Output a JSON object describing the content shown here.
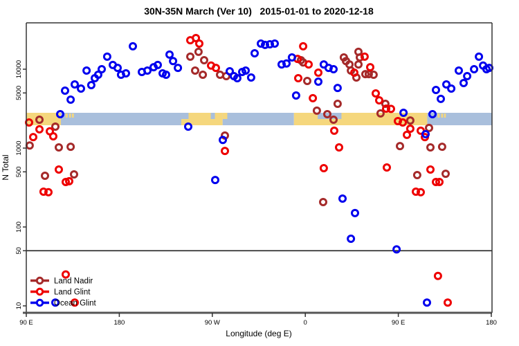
{
  "title": "30N-35N March (Ver 10)   2015-01-01 to 2020-12-18",
  "axes": {
    "x_label": "Longitude (deg E)",
    "y_label": "N Total",
    "x_ticks": [
      {
        "deg": 90,
        "label": "90 E"
      },
      {
        "deg": 180,
        "label": "180"
      },
      {
        "deg": 270,
        "label": "90 W"
      },
      {
        "deg": 360,
        "label": "0"
      },
      {
        "deg": 450,
        "label": "90 E"
      },
      {
        "deg": 540,
        "label": "180"
      }
    ],
    "y_ticks": [
      {
        "value": 10,
        "label": "10"
      },
      {
        "value": 50,
        "label": "50"
      },
      {
        "value": 100,
        "label": "100"
      },
      {
        "value": 500,
        "label": "500"
      },
      {
        "value": 1000,
        "label": "1000"
      },
      {
        "value": 5000,
        "label": "5000"
      },
      {
        "value": 10000,
        "label": "10000"
      }
    ]
  },
  "reference_line_value": 50,
  "colors": {
    "land_nadir": "#A52A2A",
    "land_glint": "#EE0000",
    "ocean_glint": "#0000EE",
    "band_ocean": "#A9BFDC",
    "band_land": "#F5D77D",
    "axis_line": "#333333",
    "bottom_axis": "#555555"
  },
  "map_band": {
    "description": "latitude strip world map 30N-35N: land vs ocean along longitude",
    "segments": [
      {
        "from": 90,
        "to": 123.5,
        "kind": "land",
        "part": "full"
      },
      {
        "from": 123.5,
        "to": 240,
        "kind": "ocean",
        "part": "full"
      },
      {
        "from": 128,
        "to": 130,
        "kind": "land",
        "part": "dot"
      },
      {
        "from": 131.5,
        "to": 133.2,
        "kind": "land",
        "part": "dot"
      },
      {
        "from": 134.2,
        "to": 136,
        "kind": "land",
        "part": "dot"
      },
      {
        "from": 240,
        "to": 280,
        "kind": "land",
        "part": "full"
      },
      {
        "from": 240,
        "to": 247,
        "kind": "ocean",
        "part": "top"
      },
      {
        "from": 268.5,
        "to": 272.5,
        "kind": "ocean",
        "part": "top"
      },
      {
        "from": 280,
        "to": 349,
        "kind": "ocean",
        "part": "full"
      },
      {
        "from": 280,
        "to": 284.5,
        "kind": "land",
        "part": "top"
      },
      {
        "from": 349,
        "to": 478,
        "kind": "land",
        "part": "full"
      },
      {
        "from": 372,
        "to": 395,
        "kind": "ocean",
        "part": "top"
      },
      {
        "from": 478,
        "to": 540.6,
        "kind": "ocean",
        "part": "full"
      },
      {
        "from": 488,
        "to": 490,
        "kind": "land",
        "part": "dot"
      },
      {
        "from": 491.5,
        "to": 493.2,
        "kind": "land",
        "part": "dot"
      },
      {
        "from": 494.2,
        "to": 496,
        "kind": "land",
        "part": "dot"
      }
    ]
  },
  "legend": {
    "items": [
      {
        "label": "Land Nadir",
        "color_key": "land_nadir"
      },
      {
        "label": "Land Glint",
        "color_key": "land_glint"
      },
      {
        "label": "Ocean Glint",
        "color_key": "ocean_glint"
      }
    ]
  },
  "chart_data": {
    "type": "scatter",
    "title": "30N-35N March (Ver 10) 2015-01-01 to 2020-12-18",
    "xlabel": "Longitude (deg E)",
    "ylabel": "N Total",
    "x_axis": {
      "range_deg": [
        90,
        540.6
      ],
      "note": "longitude axis wraps the globe 1.25 times; 90E-180E data drawn twice"
    },
    "y_axis": {
      "scale": "log10",
      "range": [
        9,
        30000
      ]
    },
    "legend_position": "bottom-left",
    "series": [
      {
        "name": "Land Nadir",
        "color_key": "land_nadir",
        "points": [
          [
            102.7,
            2290
          ],
          [
            118.1,
            1870
          ],
          [
            93.3,
            1080
          ],
          [
            121.5,
            1020
          ],
          [
            132.9,
            1040
          ],
          [
            108.1,
            446
          ],
          [
            136.2,
            464
          ],
          [
            248.7,
            14400
          ],
          [
            256.7,
            16600
          ],
          [
            262.1,
            13000
          ],
          [
            253.4,
            9600
          ],
          [
            260.8,
            8500
          ],
          [
            277.5,
            8500
          ],
          [
            283.5,
            8170
          ],
          [
            282.2,
            1440
          ],
          [
            355.8,
            13000
          ],
          [
            357.9,
            12200
          ],
          [
            361.9,
            7100
          ],
          [
            371.2,
            2980
          ],
          [
            381.3,
            2690
          ],
          [
            391.3,
            3640
          ],
          [
            387.3,
            2290
          ],
          [
            397.3,
            14100
          ],
          [
            399.4,
            12700
          ],
          [
            402.7,
            11500
          ],
          [
            404.1,
            9600
          ],
          [
            411.4,
            16600
          ],
          [
            412.8,
            14100
          ],
          [
            411.4,
            11500
          ],
          [
            409.4,
            7850
          ],
          [
            418.1,
            8670
          ],
          [
            421.4,
            8670
          ],
          [
            426.1,
            8500
          ],
          [
            437.5,
            3640
          ],
          [
            432.8,
            2750
          ],
          [
            377.3,
            207
          ],
          [
            461.6,
            2240
          ],
          [
            479.7,
            1800
          ],
          [
            451.6,
            1060
          ],
          [
            481.1,
            1020
          ],
          [
            492.4,
            1040
          ],
          [
            468.3,
            455
          ],
          [
            495.8,
            473
          ]
        ]
      },
      {
        "name": "Land Glint",
        "color_key": "land_glint",
        "points": [
          [
            92.7,
            2110
          ],
          [
            102.7,
            1730
          ],
          [
            96.7,
            1380
          ],
          [
            112.8,
            1630
          ],
          [
            116.1,
            1410
          ],
          [
            121.5,
            535
          ],
          [
            128.2,
            372
          ],
          [
            131.5,
            380
          ],
          [
            106.7,
            280
          ],
          [
            111.4,
            276
          ],
          [
            128.2,
            25
          ],
          [
            136.9,
            11
          ],
          [
            248.7,
            23300
          ],
          [
            254.1,
            24800
          ],
          [
            257.4,
            21100
          ],
          [
            268.8,
            11100
          ],
          [
            273.5,
            10400
          ],
          [
            282.2,
            920
          ],
          [
            357.9,
            19500
          ],
          [
            352.5,
            13500
          ],
          [
            363.2,
            11500
          ],
          [
            353.2,
            7690
          ],
          [
            372.6,
            9040
          ],
          [
            367.3,
            4290
          ],
          [
            377.9,
            557
          ],
          [
            388.0,
            1660
          ],
          [
            392.7,
            1020
          ],
          [
            417.4,
            14400
          ],
          [
            422.8,
            10600
          ],
          [
            407.4,
            9040
          ],
          [
            428.2,
            4930
          ],
          [
            431.5,
            4030
          ],
          [
            438.2,
            3160
          ],
          [
            442.9,
            3140
          ],
          [
            438.9,
            568
          ],
          [
            449.6,
            2200
          ],
          [
            454.3,
            2110
          ],
          [
            461.6,
            1760
          ],
          [
            458.3,
            1470
          ],
          [
            471.7,
            1660
          ],
          [
            475.7,
            1380
          ],
          [
            481.1,
            535
          ],
          [
            486.4,
            372
          ],
          [
            489.8,
            372
          ],
          [
            467.0,
            280
          ],
          [
            471.7,
            276
          ],
          [
            488.4,
            24
          ],
          [
            497.8,
            11
          ]
        ]
      },
      {
        "name": "Ocean Glint",
        "color_key": "ocean_glint",
        "points": [
          [
            193.1,
            19500
          ],
          [
            168.3,
            14400
          ],
          [
            228.6,
            15300
          ],
          [
            232.0,
            12700
          ],
          [
            173.7,
            11300
          ],
          [
            178.4,
            10400
          ],
          [
            148.3,
            9600
          ],
          [
            163.0,
            10000
          ],
          [
            159.6,
            8500
          ],
          [
            156.3,
            7690
          ],
          [
            186.4,
            8850
          ],
          [
            181.7,
            8500
          ],
          [
            201.8,
            9220
          ],
          [
            207.2,
            9600
          ],
          [
            213.2,
            10600
          ],
          [
            217.2,
            11300
          ],
          [
            221.9,
            8850
          ],
          [
            225.3,
            8500
          ],
          [
            236.7,
            10400
          ],
          [
            127.5,
            5350
          ],
          [
            132.9,
            4110
          ],
          [
            136.9,
            6410
          ],
          [
            142.9,
            5680
          ],
          [
            152.9,
            6280
          ],
          [
            122.8,
            2690
          ],
          [
            246.7,
            1870
          ],
          [
            280.2,
            1270
          ],
          [
            286.9,
            9420
          ],
          [
            290.9,
            8170
          ],
          [
            294.2,
            7690
          ],
          [
            298.9,
            9220
          ],
          [
            302.3,
            9600
          ],
          [
            307.6,
            7850
          ],
          [
            272.8,
            394
          ],
          [
            311.0,
            15900
          ],
          [
            317.0,
            21100
          ],
          [
            321.0,
            20300
          ],
          [
            325.7,
            20700
          ],
          [
            330.4,
            21100
          ],
          [
            337.1,
            11500
          ],
          [
            341.8,
            11800
          ],
          [
            347.1,
            14100
          ],
          [
            351.1,
            4640
          ],
          [
            372.6,
            6950
          ],
          [
            377.9,
            11500
          ],
          [
            382.6,
            10400
          ],
          [
            387.3,
            10000
          ],
          [
            391.3,
            5790
          ],
          [
            396.0,
            229
          ],
          [
            408.1,
            150
          ],
          [
            404.1,
            71
          ],
          [
            448.3,
            52
          ],
          [
            455.0,
            2800
          ],
          [
            476.4,
            1500
          ],
          [
            483.1,
            2690
          ],
          [
            486.4,
            5460
          ],
          [
            491.1,
            4200
          ],
          [
            496.5,
            6410
          ],
          [
            501.2,
            5680
          ],
          [
            508.5,
            9600
          ],
          [
            513.2,
            6680
          ],
          [
            516.6,
            8170
          ],
          [
            523.3,
            10000
          ],
          [
            528.0,
            14400
          ],
          [
            532.0,
            11100
          ],
          [
            535.3,
            10000
          ],
          [
            538.0,
            10400
          ],
          [
            477.7,
            11
          ],
          [
            118.1,
            11
          ]
        ]
      }
    ]
  }
}
